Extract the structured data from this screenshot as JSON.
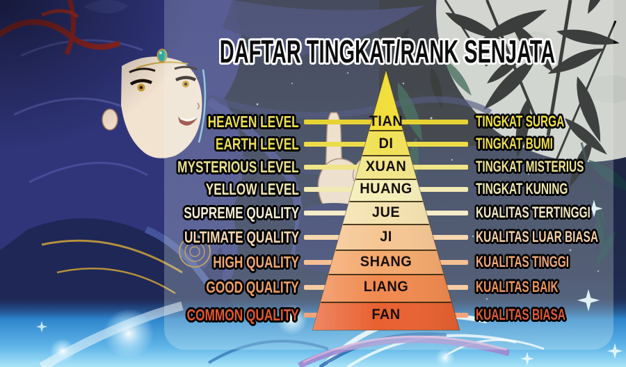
{
  "title": "DAFTAR TINGKAT/RANK SENJATA",
  "chart_data": {
    "type": "pyramid",
    "order": "highest rank at apex (TIAN) to lowest at base (FAN)",
    "levels": [
      {
        "english": "HEAVEN LEVEL",
        "tier": "TIAN",
        "indonesian": "TINGKAT SURGA",
        "band_color": "#f2de3a",
        "line_color": "#e7d234",
        "left_text_color": "#ecdf52",
        "right_text_color": "#f0e142"
      },
      {
        "english": "EARTH LEVEL",
        "tier": "DI",
        "indonesian": "TINGKAT BUMI",
        "band_color": "#f1e158",
        "line_color": "#ecdc4a",
        "left_text_color": "#eadc55",
        "right_text_color": "#eedd4d"
      },
      {
        "english": "MYSTERIOUS LEVEL",
        "tier": "XUAN",
        "indonesian": "TINGKAT MISTERIUS",
        "band_color": "#f2e68a",
        "line_color": "#efe488",
        "left_text_color": "#eae08c",
        "right_text_color": "#ece291"
      },
      {
        "english": "YELLOW LEVEL",
        "tier": "HUANG",
        "indonesian": "TINGKAT KUNING",
        "band_color": "#f4eeb8",
        "line_color": "#f2eab4",
        "left_text_color": "#efe7b2",
        "right_text_color": "#eee7ae"
      },
      {
        "english": "SUPREME QUALITY",
        "tier": "JUE",
        "indonesian": "KUALITAS TERTINGGI",
        "band_color": "#f4e2b0",
        "line_color": "#f5ecca",
        "left_text_color": "#f3ecd4",
        "right_text_color": "#f2e7c6"
      },
      {
        "english": "ULTIMATE QUALITY",
        "tier": "JI",
        "indonesian": "KUALITAS LUAR BIASA",
        "band_color": "#f5c692",
        "line_color": "#f7d7ae",
        "left_text_color": "#f6d7b2",
        "right_text_color": "#f4cfa6"
      },
      {
        "english": "HIGH QUALITY",
        "tier": "SHANG",
        "indonesian": "KUALITAS TINGGI",
        "band_color": "#f4a86c",
        "line_color": "#f6c093",
        "left_text_color": "#f1a76f",
        "right_text_color": "#efa674"
      },
      {
        "english": "GOOD QUALITY",
        "tier": "LIANG",
        "indonesian": "KUALITAS BAIK",
        "band_color": "#f0894e",
        "line_color": "#f6cba4",
        "left_text_color": "#f0a063",
        "right_text_color": "#ec9559"
      },
      {
        "english": "COMMON QUALITY",
        "tier": "FAN",
        "indonesian": "KUALITAS BIASA",
        "band_color": "#e96030",
        "line_color": "#f2a47c",
        "left_text_color": "#e2572e",
        "right_text_color": "#e05c36"
      }
    ]
  },
  "scene": {
    "moon_color": "#caccc7",
    "sky_color": "#1d2340",
    "bamboo_color": "#0b0b0c",
    "panel_tint": "rgba(240,246,242,0.22)",
    "bottom_glow_top": "#2f86cc",
    "bottom_glow_bottom": "#a9e4f8"
  }
}
